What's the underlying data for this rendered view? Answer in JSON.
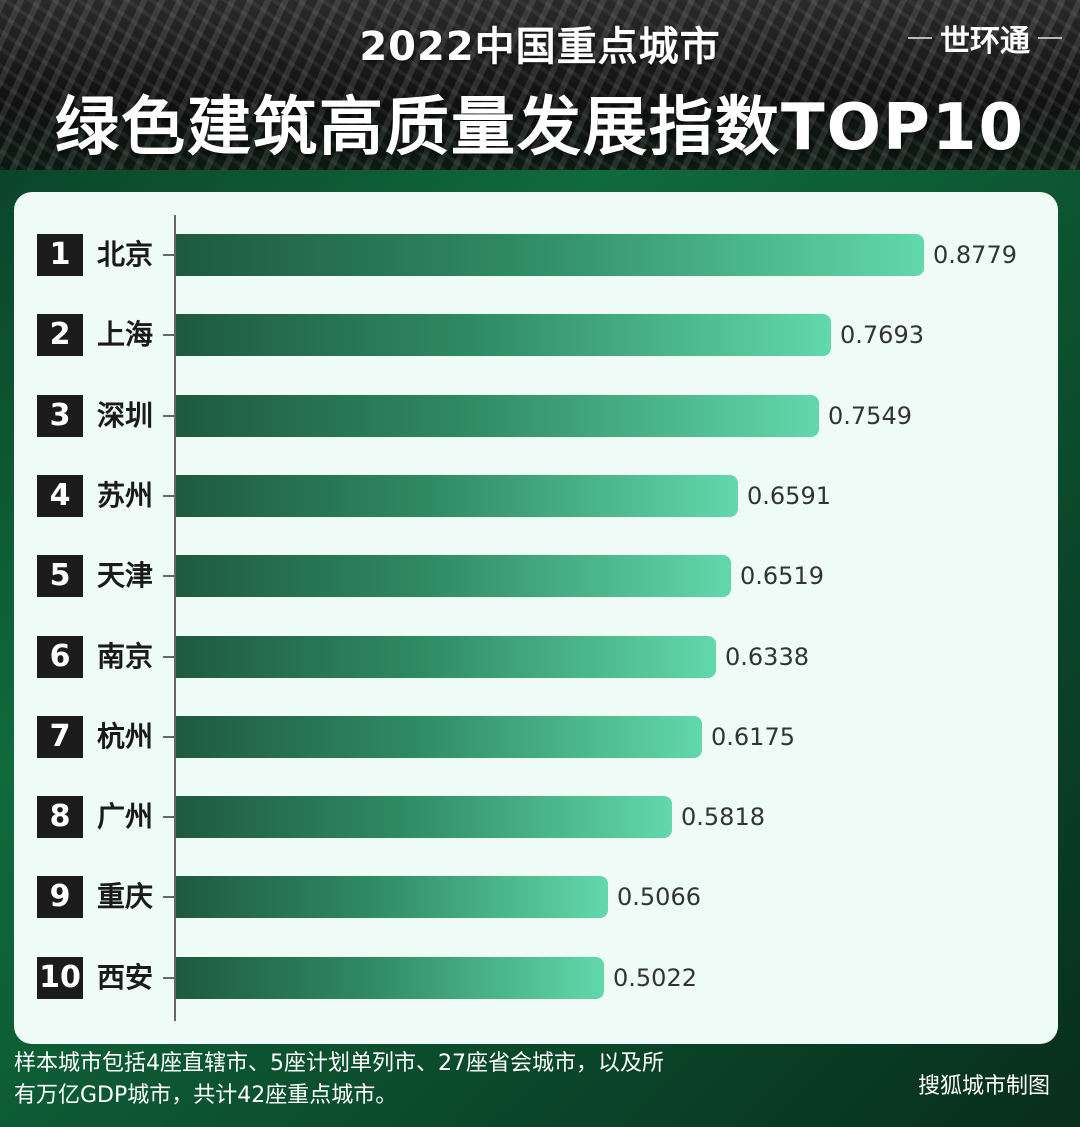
{
  "header": {
    "title_line1": "2022中国重点城市",
    "title_line2": "绿色建筑高质量发展指数TOP10",
    "brand": "世环通"
  },
  "chart_data": {
    "type": "bar",
    "orientation": "horizontal",
    "ranks": [
      "1",
      "2",
      "3",
      "4",
      "5",
      "6",
      "7",
      "8",
      "9",
      "10"
    ],
    "categories": [
      "北京",
      "上海",
      "深圳",
      "苏州",
      "天津",
      "南京",
      "杭州",
      "广州",
      "重庆",
      "西安"
    ],
    "values": [
      0.8779,
      0.7693,
      0.7549,
      0.6591,
      0.6519,
      0.6338,
      0.6175,
      0.5818,
      0.5066,
      0.5022
    ],
    "value_labels": [
      "0.8779",
      "0.7693",
      "0.7549",
      "0.6591",
      "0.6519",
      "0.6338",
      "0.6175",
      "0.5818",
      "0.5066",
      "0.5022"
    ],
    "xlim": [
      0,
      0.8779
    ],
    "grid": false,
    "colors": {
      "bar_start": "#1e5a3f",
      "bar_end": "#62d8ac"
    }
  },
  "footer": {
    "note": "样本城市包括4座直辖市、5座计划单列市、27座省会城市，以及所有万亿GDP城市，共计42座重点城市。",
    "credit": "搜狐城市制图"
  }
}
